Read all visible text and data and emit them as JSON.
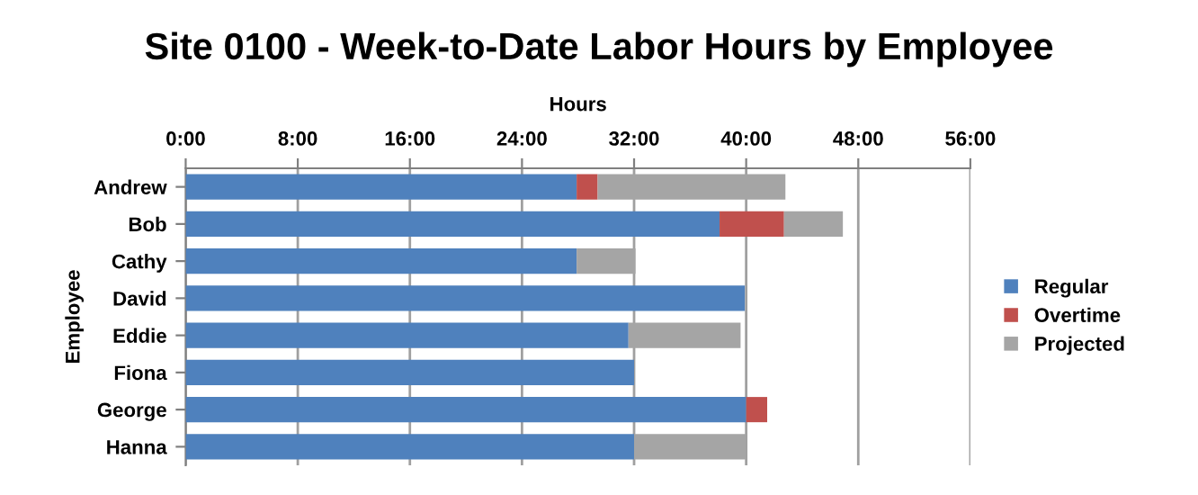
{
  "chart_data": {
    "type": "bar",
    "orientation": "horizontal",
    "stacked": true,
    "title": "Site 0100 - Week-to-Date Labor Hours by Employee",
    "xlabel": "Hours",
    "ylabel": "Employee",
    "categories": [
      "Andrew",
      "Bob",
      "Cathy",
      "David",
      "Eddie",
      "Fiona",
      "George",
      "Hanna"
    ],
    "series": [
      {
        "name": "Regular",
        "color": "#4f81bd",
        "values": [
          27.9,
          38.1,
          27.9,
          39.9,
          31.6,
          32.0,
          40.0,
          32.0
        ]
      },
      {
        "name": "Overtime",
        "color": "#c0504d",
        "values": [
          1.5,
          4.6,
          null,
          null,
          null,
          null,
          1.5,
          null
        ]
      },
      {
        "name": "Projected",
        "color": "#a5a5a5",
        "values": [
          13.4,
          4.2,
          4.2,
          null,
          8.0,
          null,
          null,
          8.0
        ]
      }
    ],
    "xlim": [
      0,
      56
    ],
    "xticks": [
      {
        "value": 0,
        "label": "0:00"
      },
      {
        "value": 8,
        "label": "8:00"
      },
      {
        "value": 16,
        "label": "16:00"
      },
      {
        "value": 24,
        "label": "24:00"
      },
      {
        "value": 32,
        "label": "32:00"
      },
      {
        "value": 40,
        "label": "40:00"
      },
      {
        "value": 48,
        "label": "48:00"
      },
      {
        "value": 56,
        "label": "56:00"
      }
    ],
    "grid": "x",
    "legend": "right"
  }
}
